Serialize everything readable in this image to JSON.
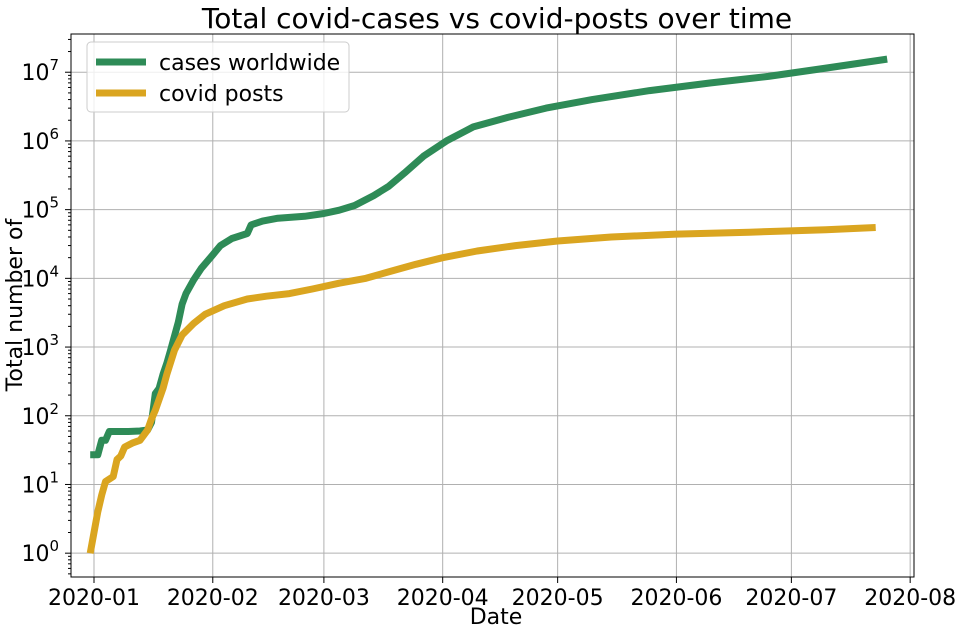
{
  "chart_data": {
    "type": "line",
    "title": "Total covid-cases vs covid-posts over time",
    "xlabel": "Date",
    "ylabel": "Total number of",
    "yscale": "log",
    "grid": true,
    "legend_placement": "top-left",
    "xlim": [
      "2019-12-26",
      "2020-08-02"
    ],
    "ylim": [
      0.45,
      36000000
    ],
    "x_ticks": [
      "2020-01-01",
      "2020-02-01",
      "2020-03-01",
      "2020-04-01",
      "2020-05-01",
      "2020-06-01",
      "2020-07-01",
      "2020-08-01"
    ],
    "x_tick_labels": [
      "2020-01",
      "2020-02",
      "2020-03",
      "2020-04",
      "2020-05",
      "2020-06",
      "2020-07",
      "2020-08"
    ],
    "y_ticks": [
      1,
      10,
      100,
      1000,
      10000,
      100000,
      1000000,
      10000000
    ],
    "y_tick_bases": [
      "10",
      "10",
      "10",
      "10",
      "10",
      "10",
      "10",
      "10"
    ],
    "y_tick_exponents": [
      "0",
      "1",
      "2",
      "3",
      "4",
      "5",
      "6",
      "7"
    ],
    "series": [
      {
        "name": "cases worldwide",
        "color": "#2e8b57",
        "points": [
          [
            "2019-12-31",
            27
          ],
          [
            "2020-01-02",
            27
          ],
          [
            "2020-01-03",
            44
          ],
          [
            "2020-01-04",
            44
          ],
          [
            "2020-01-05",
            59
          ],
          [
            "2020-01-10",
            59
          ],
          [
            "2020-01-13",
            60
          ],
          [
            "2020-01-15",
            62
          ],
          [
            "2020-01-16",
            80
          ],
          [
            "2020-01-17",
            210
          ],
          [
            "2020-01-18",
            250
          ],
          [
            "2020-01-19",
            400
          ],
          [
            "2020-01-20",
            580
          ],
          [
            "2020-01-21",
            900
          ],
          [
            "2020-01-23",
            2300
          ],
          [
            "2020-01-24",
            4200
          ],
          [
            "2020-01-25",
            6000
          ],
          [
            "2020-01-27",
            9500
          ],
          [
            "2020-01-29",
            14000
          ],
          [
            "2020-02-01",
            22000
          ],
          [
            "2020-02-03",
            30000
          ],
          [
            "2020-02-06",
            38000
          ],
          [
            "2020-02-10",
            45000
          ],
          [
            "2020-02-11",
            60000
          ],
          [
            "2020-02-14",
            68000
          ],
          [
            "2020-02-18",
            75000
          ],
          [
            "2020-02-25",
            80000
          ],
          [
            "2020-03-01",
            88000
          ],
          [
            "2020-03-05",
            98000
          ],
          [
            "2020-03-09",
            115000
          ],
          [
            "2020-03-14",
            160000
          ],
          [
            "2020-03-18",
            220000
          ],
          [
            "2020-03-22",
            340000
          ],
          [
            "2020-03-27",
            600000
          ],
          [
            "2020-04-02",
            1000000
          ],
          [
            "2020-04-09",
            1600000
          ],
          [
            "2020-04-18",
            2200000
          ],
          [
            "2020-04-28",
            3000000
          ],
          [
            "2020-05-10",
            4000000
          ],
          [
            "2020-05-25",
            5400000
          ],
          [
            "2020-06-10",
            7000000
          ],
          [
            "2020-06-25",
            8700000
          ],
          [
            "2020-07-10",
            11500000
          ],
          [
            "2020-07-26",
            15500000
          ]
        ]
      },
      {
        "name": "covid posts",
        "color": "#daa520",
        "points": [
          [
            "2019-12-31",
            1
          ],
          [
            "2020-01-01",
            2
          ],
          [
            "2020-01-02",
            4
          ],
          [
            "2020-01-03",
            7
          ],
          [
            "2020-01-04",
            11
          ],
          [
            "2020-01-06",
            13
          ],
          [
            "2020-01-07",
            23
          ],
          [
            "2020-01-08",
            26
          ],
          [
            "2020-01-09",
            35
          ],
          [
            "2020-01-11",
            40
          ],
          [
            "2020-01-13",
            44
          ],
          [
            "2020-01-15",
            62
          ],
          [
            "2020-01-16",
            90
          ],
          [
            "2020-01-17",
            120
          ],
          [
            "2020-01-19",
            250
          ],
          [
            "2020-01-20",
            400
          ],
          [
            "2020-01-22",
            900
          ],
          [
            "2020-01-24",
            1500
          ],
          [
            "2020-01-27",
            2200
          ],
          [
            "2020-01-30",
            3000
          ],
          [
            "2020-02-04",
            4000
          ],
          [
            "2020-02-10",
            5000
          ],
          [
            "2020-02-15",
            5500
          ],
          [
            "2020-02-21",
            6000
          ],
          [
            "2020-02-27",
            7000
          ],
          [
            "2020-03-05",
            8500
          ],
          [
            "2020-03-12",
            10000
          ],
          [
            "2020-03-18",
            12500
          ],
          [
            "2020-03-25",
            16000
          ],
          [
            "2020-04-01",
            20000
          ],
          [
            "2020-04-10",
            25000
          ],
          [
            "2020-04-20",
            30000
          ],
          [
            "2020-05-01",
            35000
          ],
          [
            "2020-05-15",
            40000
          ],
          [
            "2020-06-01",
            44000
          ],
          [
            "2020-06-20",
            47000
          ],
          [
            "2020-07-10",
            51000
          ],
          [
            "2020-07-23",
            55000
          ]
        ]
      }
    ]
  }
}
